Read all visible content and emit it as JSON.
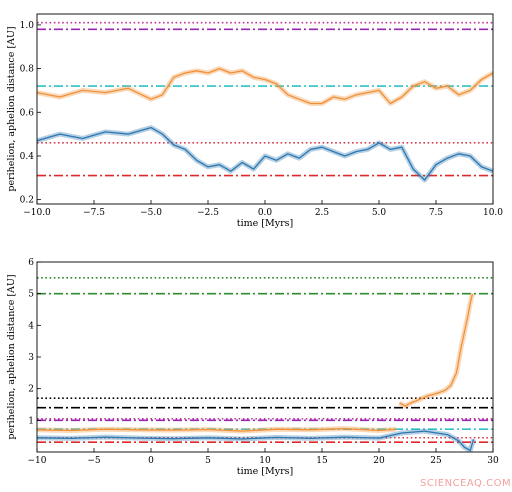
{
  "watermark": "SCIENCEAQ.COM",
  "chart_data": [
    {
      "type": "line",
      "xlabel": "time [Myrs]",
      "ylabel": "perihelion, aphelion distance [AU]",
      "xlim": [
        -10,
        10
      ],
      "ylim": [
        0.18,
        1.05
      ],
      "xticks": [
        -10,
        -7.5,
        -5,
        -2.5,
        0,
        2.5,
        5,
        7.5,
        10
      ],
      "xtick_labels": [
        "−10.0",
        "−7.5",
        "−5.0",
        "−2.5",
        "0.0",
        "2.5",
        "5.0",
        "7.5",
        "10.0"
      ],
      "yticks": [
        0.2,
        0.4,
        0.6,
        0.8,
        1.0
      ],
      "ytick_labels": [
        "0.2",
        "0.4",
        "0.6",
        "0.8",
        "1.0"
      ],
      "grid": false,
      "series": [
        {
          "color": "#f0913a",
          "style": "solid",
          "x": [
            -10,
            -9,
            -8,
            -7,
            -6,
            -5,
            -4.5,
            -4,
            -3.5,
            -3,
            -2.5,
            -2,
            -1.5,
            -1,
            -0.5,
            0,
            0.5,
            1,
            1.5,
            2,
            2.5,
            3,
            3.5,
            4,
            4.5,
            5,
            5.5,
            6,
            6.5,
            7,
            7.5,
            8,
            8.5,
            9,
            9.5,
            10
          ],
          "values": [
            0.69,
            0.67,
            0.7,
            0.69,
            0.71,
            0.66,
            0.68,
            0.76,
            0.78,
            0.79,
            0.78,
            0.8,
            0.78,
            0.79,
            0.76,
            0.75,
            0.73,
            0.68,
            0.66,
            0.64,
            0.64,
            0.67,
            0.66,
            0.68,
            0.69,
            0.7,
            0.64,
            0.67,
            0.72,
            0.74,
            0.71,
            0.72,
            0.68,
            0.7,
            0.75,
            0.78
          ]
        },
        {
          "color": "#2e77b0",
          "style": "solid",
          "x": [
            -10,
            -9,
            -8,
            -7,
            -6,
            -5,
            -4.5,
            -4,
            -3.5,
            -3,
            -2.5,
            -2,
            -1.5,
            -1,
            -0.5,
            0,
            0.5,
            1,
            1.5,
            2,
            2.5,
            3,
            3.5,
            4,
            4.5,
            5,
            5.5,
            6,
            6.5,
            7,
            7.5,
            8,
            8.5,
            9,
            9.5,
            10
          ],
          "values": [
            0.47,
            0.5,
            0.48,
            0.51,
            0.5,
            0.53,
            0.5,
            0.45,
            0.43,
            0.38,
            0.35,
            0.36,
            0.33,
            0.37,
            0.34,
            0.4,
            0.38,
            0.41,
            0.39,
            0.43,
            0.44,
            0.42,
            0.4,
            0.42,
            0.43,
            0.46,
            0.43,
            0.44,
            0.34,
            0.29,
            0.36,
            0.39,
            0.41,
            0.4,
            0.35,
            0.33
          ]
        }
      ],
      "hlines": [
        {
          "y": 1.01,
          "color": "#c0369a",
          "style": "dotted"
        },
        {
          "y": 0.98,
          "color": "#9b25b3",
          "style": "dashdot"
        },
        {
          "y": 0.72,
          "color": "#2fc2c7",
          "style": "dashdot"
        },
        {
          "y": 0.46,
          "color": "#d63c4a",
          "style": "dotted"
        },
        {
          "y": 0.31,
          "color": "#e0282a",
          "style": "dashdot"
        }
      ]
    },
    {
      "type": "line",
      "xlabel": "time [Myrs]",
      "ylabel": "perihelion, aphelion distance [AU]",
      "xlim": [
        -10,
        30
      ],
      "ylim": [
        0.0,
        6.0
      ],
      "xticks": [
        -10,
        -5,
        0,
        5,
        10,
        15,
        20,
        25,
        30
      ],
      "xtick_labels": [
        "−10",
        "−5",
        "0",
        "5",
        "10",
        "15",
        "20",
        "25",
        "30"
      ],
      "yticks": [
        1,
        2,
        3,
        4,
        5,
        6
      ],
      "ytick_labels": [
        "1",
        "2",
        "3",
        "4",
        "5",
        "6"
      ],
      "grid": false,
      "series": [
        {
          "color": "#f0913a",
          "style": "solid",
          "x": [
            -10,
            -7,
            -4,
            -1,
            2,
            5,
            8,
            11,
            14,
            17,
            20,
            21.5
          ],
          "values": [
            0.7,
            0.68,
            0.72,
            0.7,
            0.69,
            0.71,
            0.66,
            0.72,
            0.7,
            0.74,
            0.68,
            0.72
          ]
        },
        {
          "color": "#f0913a",
          "style": "solid",
          "x": [
            21.8,
            22.3,
            22.8,
            23.3,
            23.8,
            24.3,
            24.8,
            25.3,
            25.8,
            26.3,
            26.8,
            27.2,
            27.5,
            27.8,
            28.0,
            28.2
          ],
          "values": [
            1.55,
            1.45,
            1.55,
            1.62,
            1.7,
            1.78,
            1.82,
            1.88,
            1.95,
            2.1,
            2.5,
            3.3,
            3.8,
            4.3,
            4.7,
            5.0
          ]
        },
        {
          "color": "#2e77b0",
          "style": "solid",
          "x": [
            -10,
            -7,
            -4,
            -1,
            2,
            5,
            8,
            11,
            14,
            17,
            20,
            22,
            24,
            26,
            27,
            27.5,
            28,
            28.3
          ],
          "values": [
            0.45,
            0.43,
            0.47,
            0.44,
            0.42,
            0.45,
            0.41,
            0.46,
            0.43,
            0.47,
            0.44,
            0.6,
            0.66,
            0.55,
            0.35,
            0.15,
            0.05,
            0.4
          ]
        }
      ],
      "hlines": [
        {
          "y": 5.5,
          "color": "#2a8a2a",
          "style": "dotted"
        },
        {
          "y": 5.0,
          "color": "#2e8b2e",
          "style": "dashdot"
        },
        {
          "y": 1.7,
          "color": "#000000",
          "style": "dotted"
        },
        {
          "y": 1.4,
          "color": "#000000",
          "style": "dashdot"
        },
        {
          "y": 1.05,
          "color": "#c0369a",
          "style": "dotted"
        },
        {
          "y": 1.0,
          "color": "#9b25b3",
          "style": "dashdot"
        },
        {
          "y": 0.72,
          "color": "#2fc2c7",
          "style": "dashdot"
        },
        {
          "y": 0.45,
          "color": "#d63c4a",
          "style": "dotted"
        },
        {
          "y": 0.31,
          "color": "#e0282a",
          "style": "dashdot"
        }
      ]
    }
  ]
}
